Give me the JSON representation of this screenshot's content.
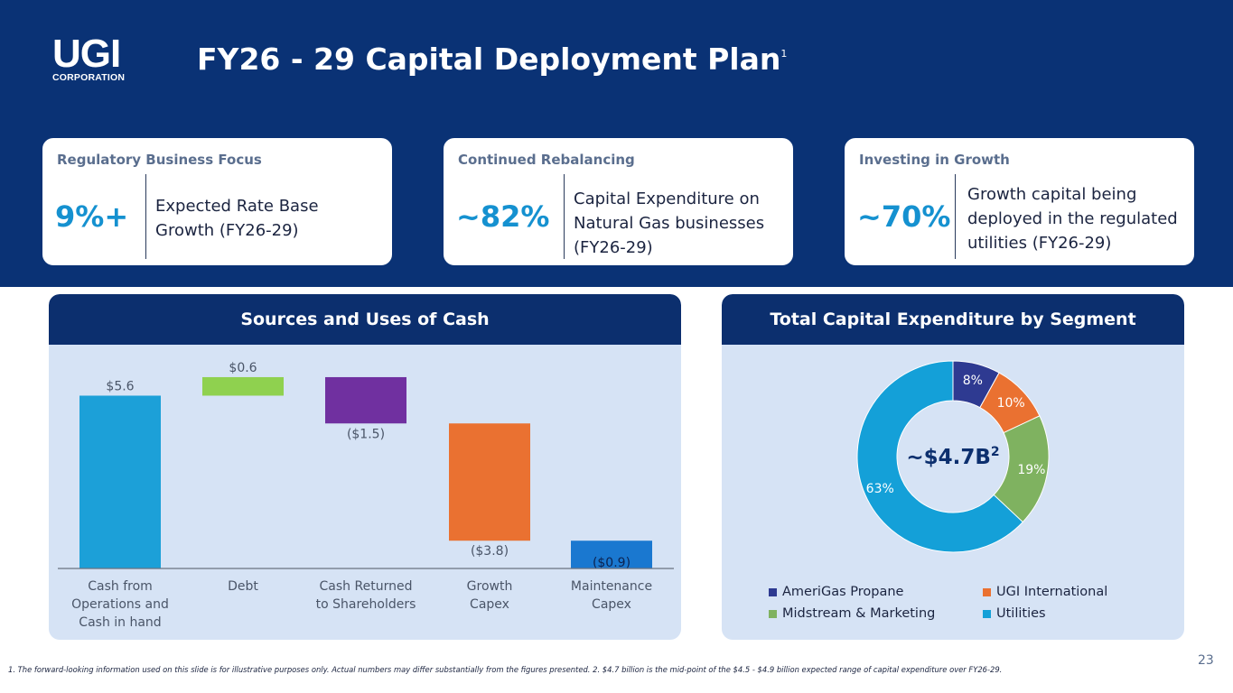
{
  "logo": {
    "main": "UGI",
    "sub": "CORPORATION"
  },
  "title": {
    "text": "FY26 - 29 Capital Deployment Plan",
    "sup": "1"
  },
  "kpis": [
    {
      "heading": "Regulatory Business Focus",
      "value": "9%+",
      "description": "Expected Rate Base Growth (FY26-29)"
    },
    {
      "heading": "Continued Rebalancing",
      "value": "~82%",
      "description": "Capital Expenditure on Natural Gas businesses (FY26-29)"
    },
    {
      "heading": "Investing in Growth",
      "value": "~70%",
      "description": "Growth capital being deployed in the regulated utilities (FY26-29)"
    }
  ],
  "panels": {
    "sources_uses_title": "Sources and Uses of Cash",
    "capex_title": "Total Capital Expenditure by Segment"
  },
  "chart_data": [
    {
      "type": "bar",
      "subtype": "waterfall",
      "title": "Sources and Uses of Cash",
      "categories": [
        "Cash from Operations and Cash in hand",
        "Debt",
        "Cash Returned to Shareholders",
        "Growth Capex",
        "Maintenance Capex"
      ],
      "category_lines": [
        [
          "Cash from",
          "Operations and",
          "Cash in hand"
        ],
        [
          "Debt"
        ],
        [
          "Cash Returned",
          "to Shareholders"
        ],
        [
          "Growth",
          "Capex"
        ],
        [
          "Maintenance",
          "Capex"
        ]
      ],
      "values": [
        5.6,
        0.6,
        -1.5,
        -3.8,
        -0.9
      ],
      "labels": [
        "$5.6",
        "$0.6",
        "($1.5)",
        "($3.8)",
        "($0.9)"
      ],
      "colors": [
        "#1ca0d8",
        "#8fd14f",
        "#7030a0",
        "#ea7131",
        "#1a78d0"
      ],
      "unit": "$B"
    },
    {
      "type": "pie",
      "subtype": "donut",
      "title": "Total Capital Expenditure by Segment",
      "center_label": "~$4.7B",
      "center_sup": "2",
      "labels": [
        "AmeriGas Propane",
        "UGI International",
        "Midstream & Marketing",
        "Utilities"
      ],
      "values": [
        8,
        10,
        19,
        63
      ],
      "value_labels": [
        "8%",
        "10%",
        "19%",
        "63%"
      ],
      "colors": [
        "#2e3a91",
        "#ea7131",
        "#7fb260",
        "#14a0d8"
      ]
    }
  ],
  "footnote": "1. The forward-looking information used on this slide is for illustrative purposes only. Actual numbers may differ substantially from the figures presented. 2. $4.7 billion is the mid-point of the $4.5 - $4.9 billion expected range of capital expenditure over FY26-29.",
  "page_number": "23"
}
